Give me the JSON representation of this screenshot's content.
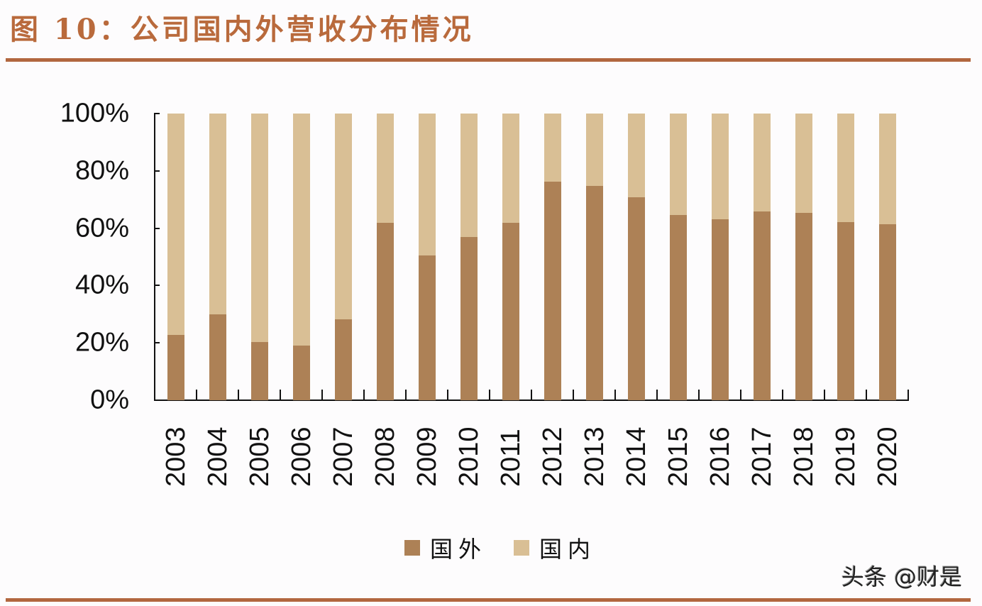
{
  "title": "图 10：公司国内外营收分布情况",
  "watermark": "头条 @财是",
  "colors": {
    "foreign": "#ad8156",
    "domestic": "#d9bf95",
    "accent": "#b2673f"
  },
  "legend": [
    {
      "label": "国外",
      "color": "#ad8156"
    },
    {
      "label": "国内",
      "color": "#d9bf95"
    }
  ],
  "chart_data": {
    "type": "bar",
    "stacked": true,
    "percent": true,
    "title": "图 10：公司国内外营收分布情况",
    "xlabel": "",
    "ylabel": "",
    "ylim": [
      0,
      100
    ],
    "yticks": [
      "0%",
      "20%",
      "40%",
      "60%",
      "80%",
      "100%"
    ],
    "grid": false,
    "legend_position": "bottom",
    "categories": [
      "2003",
      "2004",
      "2005",
      "2006",
      "2007",
      "2008",
      "2009",
      "2010",
      "2011",
      "2012",
      "2013",
      "2014",
      "2015",
      "2016",
      "2017",
      "2018",
      "2019",
      "2020"
    ],
    "series": [
      {
        "name": "国外",
        "values": [
          22.8,
          29.9,
          20.4,
          19.0,
          28.2,
          61.9,
          50.5,
          56.9,
          61.9,
          76.2,
          74.8,
          70.8,
          64.5,
          63.1,
          65.8,
          65.3,
          62.2,
          61.4
        ]
      },
      {
        "name": "国内",
        "values": [
          77.2,
          70.1,
          79.6,
          81.0,
          71.8,
          38.1,
          49.5,
          43.1,
          38.1,
          23.8,
          25.2,
          29.2,
          35.5,
          36.9,
          34.2,
          34.7,
          37.8,
          38.6
        ]
      }
    ]
  }
}
